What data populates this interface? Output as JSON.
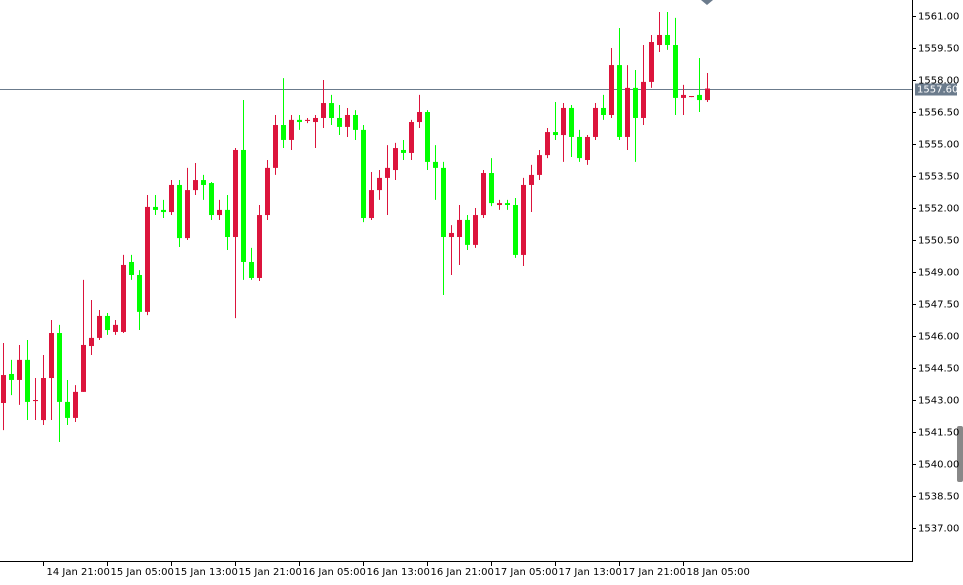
{
  "chart_data": {
    "type": "candlestick",
    "categories": [
      null,
      null,
      null,
      null,
      null,
      "14 Jan 21:00",
      null,
      null,
      null,
      null,
      null,
      null,
      null,
      "15 Jan 05:00",
      null,
      null,
      null,
      null,
      null,
      null,
      null,
      "15 Jan 13:00",
      null,
      null,
      null,
      null,
      null,
      null,
      null,
      "15 Jan 21:00",
      null,
      null,
      null,
      null,
      null,
      null,
      null,
      "16 Jan 05:00",
      null,
      null,
      null,
      null,
      null,
      null,
      null,
      "16 Jan 13:00",
      null,
      null,
      null,
      null,
      null,
      null,
      null,
      "16 Jan 21:00",
      null,
      null,
      null,
      null,
      null,
      null,
      null,
      "17 Jan 05:00",
      null,
      null,
      null,
      null,
      null,
      null,
      null,
      "17 Jan 13:00",
      null,
      null,
      null,
      null,
      null,
      null,
      null,
      "17 Jan 21:00",
      null,
      null,
      null,
      null,
      null,
      null,
      null,
      "18 Jan 05:00",
      null,
      null,
      null
    ],
    "open": [
      1542.86,
      1544.22,
      1543.94,
      1544.88,
      1542.95,
      1542.06,
      1544.03,
      1546.14,
      1542.91,
      1542.16,
      1543.38,
      1545.53,
      1545.91,
      1546.94,
      1546.19,
      1546.19,
      1549.47,
      1548.86,
      1547.13,
      1552.05,
      1551.91,
      1551.81,
      1553.08,
      1550.59,
      1552.84,
      1553.31,
      1553.17,
      1551.67,
      1551.91,
      1550.64,
      1554.72,
      1549.47,
      1548.72,
      1551.67,
      1553.88,
      1555.89,
      1555.19,
      1556.13,
      1556.08,
      1556.03,
      1556.22,
      1556.92,
      1556.22,
      1555.8,
      1556.36,
      1555.66,
      1551.53,
      1552.84,
      1553.41,
      1553.78,
      1554.72,
      1554.58,
      1556.03,
      1556.5,
      1554.16,
      1553.88,
      1550.64,
      1550.64,
      1551.44,
      1550.27,
      1551.67,
      1553.64,
      1552.14,
      1552.23,
      1552.14,
      1549.8,
      1553.08,
      1553.55,
      1554.48,
      1555.56,
      1555.42,
      1556.69,
      1555.33,
      1554.25,
      1555.33,
      1556.69,
      1556.36,
      1558.7,
      1555.33,
      1557.63,
      1556.22,
      1557.91,
      1559.64,
      1560.11,
      1559.64,
      1557.16,
      1557.2,
      1557.3,
      1557.06
    ],
    "high": [
      1545.67,
      1544.88,
      1545.58,
      1545.81,
      1544.03,
      1545.11,
      1546.75,
      1546.52,
      1543.94,
      1543.7,
      1548.63,
      1547.69,
      1547.22,
      1547.08,
      1546.75,
      1549.8,
      1549.8,
      1549.09,
      1552.61,
      1552.61,
      1552.38,
      1553.31,
      1553.31,
      1553.88,
      1554.11,
      1553.55,
      1553.22,
      1552.38,
      1552.61,
      1554.81,
      1557.06,
      1550.13,
      1552.14,
      1554.25,
      1556.36,
      1558.09,
      1556.36,
      1556.36,
      1556.22,
      1556.36,
      1558.0,
      1557.3,
      1556.83,
      1556.69,
      1556.59,
      1555.89,
      1553.69,
      1553.78,
      1554.95,
      1555.05,
      1555.19,
      1556.13,
      1557.3,
      1556.59,
      1554.95,
      1554.16,
      1551.2,
      1552.14,
      1551.67,
      1552.0,
      1553.78,
      1554.34,
      1552.38,
      1552.38,
      1552.47,
      1553.41,
      1554.02,
      1554.72,
      1555.75,
      1556.97,
      1556.92,
      1556.83,
      1555.66,
      1555.42,
      1556.92,
      1557.3,
      1559.5,
      1560.44,
      1558.7,
      1558.47,
      1559.64,
      1560.11,
      1561.19,
      1561.19,
      1560.91,
      1557.77,
      1557.25,
      1559.03,
      1558.33
    ],
    "low": [
      1541.59,
      1543.23,
      1542.77,
      1542.06,
      1542.06,
      1541.83,
      1542.06,
      1541.03,
      1541.83,
      1541.97,
      1543.38,
      1545.11,
      1545.81,
      1546.05,
      1546.05,
      1546.14,
      1548.63,
      1546.28,
      1546.98,
      1551.67,
      1551.53,
      1551.67,
      1550.17,
      1550.5,
      1552.61,
      1552.38,
      1551.44,
      1551.44,
      1550.03,
      1546.84,
      1548.63,
      1548.63,
      1548.58,
      1551.44,
      1553.55,
      1554.81,
      1554.72,
      1555.66,
      1555.98,
      1554.81,
      1555.75,
      1555.89,
      1555.42,
      1555.33,
      1555.19,
      1551.34,
      1551.44,
      1552.38,
      1551.67,
      1553.31,
      1554.25,
      1554.25,
      1555.75,
      1553.78,
      1552.38,
      1547.92,
      1548.86,
      1549.33,
      1550.03,
      1550.13,
      1551.53,
      1552.09,
      1551.91,
      1551.91,
      1549.66,
      1549.28,
      1551.81,
      1553.31,
      1554.34,
      1555.19,
      1554.16,
      1554.39,
      1554.16,
      1554.02,
      1555.19,
      1556.13,
      1556.22,
      1555.19,
      1554.72,
      1554.16,
      1555.89,
      1557.63,
      1559.31,
      1559.41,
      1556.36,
      1556.36,
      1557.2,
      1556.5,
      1556.97
    ],
    "close": [
      1544.17,
      1543.94,
      1544.88,
      1542.91,
      1543.0,
      1544.03,
      1546.14,
      1542.91,
      1542.16,
      1543.38,
      1545.58,
      1545.91,
      1546.94,
      1546.28,
      1546.52,
      1549.33,
      1548.86,
      1547.13,
      1552.05,
      1551.91,
      1551.81,
      1553.08,
      1550.59,
      1552.84,
      1553.31,
      1553.08,
      1551.67,
      1551.91,
      1550.64,
      1554.72,
      1549.47,
      1548.72,
      1551.67,
      1553.88,
      1555.89,
      1555.19,
      1556.13,
      1556.03,
      1556.13,
      1556.22,
      1556.92,
      1556.22,
      1555.8,
      1556.36,
      1555.66,
      1551.53,
      1552.84,
      1553.41,
      1553.88,
      1554.81,
      1554.58,
      1556.03,
      1556.5,
      1554.16,
      1553.88,
      1550.64,
      1550.83,
      1551.44,
      1550.27,
      1551.67,
      1553.64,
      1552.23,
      1552.23,
      1552.14,
      1549.8,
      1553.08,
      1553.55,
      1554.48,
      1555.56,
      1555.42,
      1556.69,
      1555.33,
      1554.34,
      1555.33,
      1556.69,
      1556.36,
      1558.7,
      1555.33,
      1557.63,
      1556.22,
      1557.91,
      1559.78,
      1560.11,
      1559.64,
      1557.16,
      1557.3,
      1557.25,
      1557.06,
      1557.6
    ],
    "up_color": "#dc143c",
    "down_color": "#00ff00",
    "ylim": [
      1535.5,
      1561.75
    ],
    "yticks": [
      {
        "value": 1561,
        "label": "1561.00"
      },
      {
        "value": 1559.5,
        "label": "1559.50"
      },
      {
        "value": 1558,
        "label": "1558.00"
      },
      {
        "value": 1556.5,
        "label": "1556.50"
      },
      {
        "value": 1555,
        "label": "1555.00"
      },
      {
        "value": 1553.5,
        "label": "1553.50"
      },
      {
        "value": 1552,
        "label": "1552.00"
      },
      {
        "value": 1550.5,
        "label": "1550.50"
      },
      {
        "value": 1549,
        "label": "1549.00"
      },
      {
        "value": 1547.5,
        "label": "1547.50"
      },
      {
        "value": 1546,
        "label": "1546.00"
      },
      {
        "value": 1544.5,
        "label": "1544.50"
      },
      {
        "value": 1543,
        "label": "1543.00"
      },
      {
        "value": 1541.5,
        "label": "1541.50"
      },
      {
        "value": 1540,
        "label": "1540.00"
      },
      {
        "value": 1538.5,
        "label": "1538.50"
      },
      {
        "value": 1537,
        "label": "1537.00"
      }
    ],
    "current_price": {
      "value": 1557.6,
      "label": "1557.60"
    },
    "price_line_color": "#6b7b8c"
  }
}
